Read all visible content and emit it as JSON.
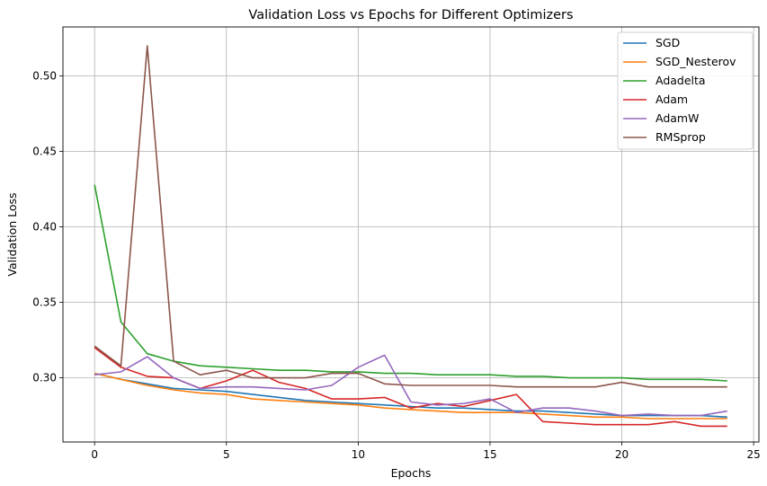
{
  "chart_data": {
    "type": "line",
    "title": "Validation Loss vs Epochs for Different Optimizers",
    "xlabel": "Epochs",
    "ylabel": "Validation Loss",
    "xlim": [
      -1.2,
      25.2
    ],
    "ylim": [
      0.2575,
      0.5325
    ],
    "xticks": [
      0,
      5,
      10,
      15,
      20,
      25
    ],
    "yticks": [
      0.3,
      0.35,
      0.4,
      0.45,
      0.5
    ],
    "grid": true,
    "legend_position": "top-right",
    "x": [
      0,
      1,
      2,
      3,
      4,
      5,
      6,
      7,
      8,
      9,
      10,
      11,
      12,
      13,
      14,
      15,
      16,
      17,
      18,
      19,
      20,
      21,
      22,
      23,
      24
    ],
    "series": [
      {
        "name": "SGD",
        "color": "#1f77b4",
        "values": [
          0.303,
          0.299,
          0.296,
          0.293,
          0.292,
          0.291,
          0.289,
          0.287,
          0.285,
          0.284,
          0.283,
          0.282,
          0.281,
          0.28,
          0.28,
          0.279,
          0.278,
          0.278,
          0.277,
          0.276,
          0.275,
          0.275,
          0.275,
          0.275,
          0.274
        ]
      },
      {
        "name": "SGD_Nesterov",
        "color": "#ff7f0e",
        "values": [
          0.303,
          0.299,
          0.295,
          0.292,
          0.29,
          0.289,
          0.286,
          0.285,
          0.284,
          0.283,
          0.282,
          0.28,
          0.279,
          0.278,
          0.277,
          0.277,
          0.277,
          0.276,
          0.275,
          0.274,
          0.274,
          0.273,
          0.273,
          0.273,
          0.273
        ]
      },
      {
        "name": "Adadelta",
        "color": "#2ca02c",
        "values": [
          0.428,
          0.337,
          0.316,
          0.311,
          0.308,
          0.307,
          0.306,
          0.305,
          0.305,
          0.304,
          0.304,
          0.303,
          0.303,
          0.302,
          0.302,
          0.302,
          0.301,
          0.301,
          0.3,
          0.3,
          0.3,
          0.299,
          0.299,
          0.299,
          0.298
        ]
      },
      {
        "name": "Adam",
        "color": "#d62728",
        "values": [
          0.32,
          0.307,
          0.301,
          0.3,
          0.293,
          0.298,
          0.305,
          0.297,
          0.293,
          0.286,
          0.286,
          0.287,
          0.28,
          0.283,
          0.281,
          0.285,
          0.289,
          0.271,
          0.27,
          0.269,
          0.269,
          0.269,
          0.271,
          0.268,
          0.268
        ]
      },
      {
        "name": "AdamW",
        "color": "#9467bd",
        "values": [
          0.302,
          0.304,
          0.314,
          0.3,
          0.293,
          0.294,
          0.294,
          0.293,
          0.292,
          0.295,
          0.307,
          0.315,
          0.284,
          0.282,
          0.283,
          0.286,
          0.277,
          0.28,
          0.28,
          0.278,
          0.275,
          0.276,
          0.275,
          0.275,
          0.278
        ]
      },
      {
        "name": "RMSprop",
        "color": "#8c564b",
        "values": [
          0.321,
          0.308,
          0.52,
          0.311,
          0.302,
          0.305,
          0.3,
          0.3,
          0.3,
          0.303,
          0.303,
          0.296,
          0.295,
          0.295,
          0.295,
          0.295,
          0.294,
          0.294,
          0.294,
          0.294,
          0.297,
          0.294,
          0.294,
          0.294,
          0.294
        ]
      }
    ]
  }
}
